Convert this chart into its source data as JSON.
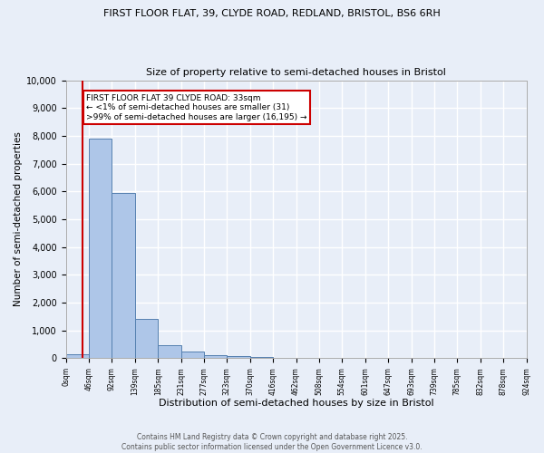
{
  "title_line1": "FIRST FLOOR FLAT, 39, CLYDE ROAD, REDLAND, BRISTOL, BS6 6RH",
  "title_line2": "Size of property relative to semi-detached houses in Bristol",
  "xlabel": "Distribution of semi-detached houses by size in Bristol",
  "ylabel": "Number of semi-detached properties",
  "bar_values": [
    130,
    7900,
    5950,
    1400,
    470,
    220,
    120,
    60,
    30,
    0,
    0,
    0,
    0,
    0,
    0,
    0,
    0,
    0,
    0,
    0
  ],
  "bin_labels": [
    "0sqm",
    "46sqm",
    "92sqm",
    "139sqm",
    "185sqm",
    "231sqm",
    "277sqm",
    "323sqm",
    "370sqm",
    "416sqm",
    "462sqm",
    "508sqm",
    "554sqm",
    "601sqm",
    "647sqm",
    "693sqm",
    "739sqm",
    "785sqm",
    "832sqm",
    "878sqm",
    "924sqm"
  ],
  "bar_color": "#aec6e8",
  "bar_edge_color": "#5580b0",
  "property_line_x": 33,
  "property_line_color": "#cc0000",
  "annotation_text": "FIRST FLOOR FLAT 39 CLYDE ROAD: 33sqm\n← <1% of semi-detached houses are smaller (31)\n>99% of semi-detached houses are larger (16,195) →",
  "annotation_box_color": "#ffffff",
  "annotation_box_edge": "#cc0000",
  "ylim": [
    0,
    10000
  ],
  "yticks": [
    0,
    1000,
    2000,
    3000,
    4000,
    5000,
    6000,
    7000,
    8000,
    9000,
    10000
  ],
  "footnote": "Contains HM Land Registry data © Crown copyright and database right 2025.\nContains public sector information licensed under the Open Government Licence v3.0.",
  "background_color": "#e8eef8",
  "grid_color": "#ffffff",
  "bin_width": 46,
  "num_bins": 20
}
